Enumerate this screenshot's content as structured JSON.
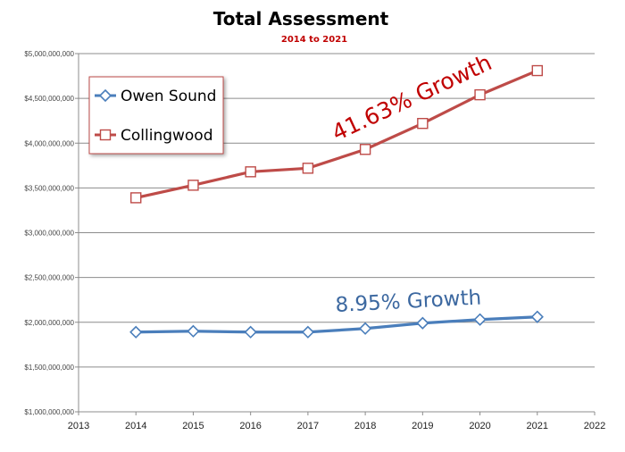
{
  "chart_data": {
    "type": "line",
    "title": "Total Assessment",
    "subtitle": "2014 to 2021",
    "xlabel": "",
    "ylabel": "",
    "xlim": [
      2013,
      2022
    ],
    "ylim": [
      1000000000,
      5000000000
    ],
    "x_ticks": [
      "2013",
      "2014",
      "2015",
      "2016",
      "2017",
      "2018",
      "2019",
      "2020",
      "2021",
      "2022"
    ],
    "y_ticks": [
      "$1,000,000,000",
      "$1,500,000,000",
      "$2,000,000,000",
      "$2,500,000,000",
      "$3,000,000,000",
      "$3,500,000,000",
      "$4,000,000,000",
      "$4,500,000,000",
      "$5,000,000,000"
    ],
    "grid": true,
    "legend_position": "top-left",
    "x": [
      2014,
      2015,
      2016,
      2017,
      2018,
      2019,
      2020,
      2021
    ],
    "series": [
      {
        "name": "Owen Sound",
        "color": "#4a7ebb",
        "marker": "diamond",
        "values": [
          1890000000,
          1900000000,
          1890000000,
          1890000000,
          1930000000,
          1990000000,
          2030000000,
          2060000000
        ]
      },
      {
        "name": "Collingwood",
        "color": "#be4b48",
        "marker": "square",
        "values": [
          3390000000,
          3530000000,
          3680000000,
          3720000000,
          3930000000,
          4220000000,
          4540000000,
          4810000000
        ]
      }
    ],
    "annotations": [
      {
        "text": "41.63% Growth",
        "color": "#c00000",
        "series": "Collingwood"
      },
      {
        "text": "8.95% Growth",
        "color": "#3c68a0",
        "series": "Owen Sound"
      }
    ]
  }
}
